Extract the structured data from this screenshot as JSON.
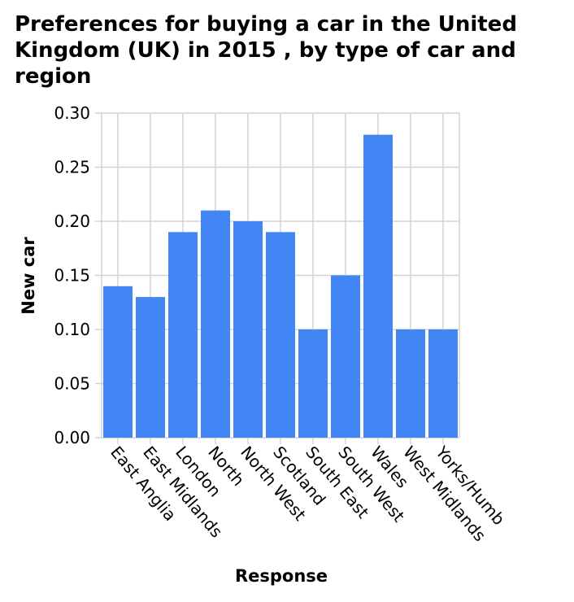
{
  "chart_data": {
    "type": "bar",
    "title": "Preferences for buying a car in the United Kingdom (UK) in 2015 , by type of car and region",
    "xlabel": "Response",
    "ylabel": "New car",
    "categories": [
      "East Anglia",
      "East Midlands",
      "London",
      "North",
      "North West",
      "Scotland",
      "South East",
      "South West",
      "Wales",
      "West Midlands",
      "Yorks/Humb"
    ],
    "values": [
      0.14,
      0.13,
      0.19,
      0.21,
      0.2,
      0.19,
      0.1,
      0.15,
      0.28,
      0.1,
      0.1
    ],
    "ylim": [
      0,
      0.3
    ],
    "yticks": [
      "0.00",
      "0.05",
      "0.10",
      "0.15",
      "0.20",
      "0.25",
      "0.30"
    ],
    "grid": true,
    "legend": "none",
    "bar_color": "#4285f4",
    "grid_color": "#d3d3d3"
  }
}
